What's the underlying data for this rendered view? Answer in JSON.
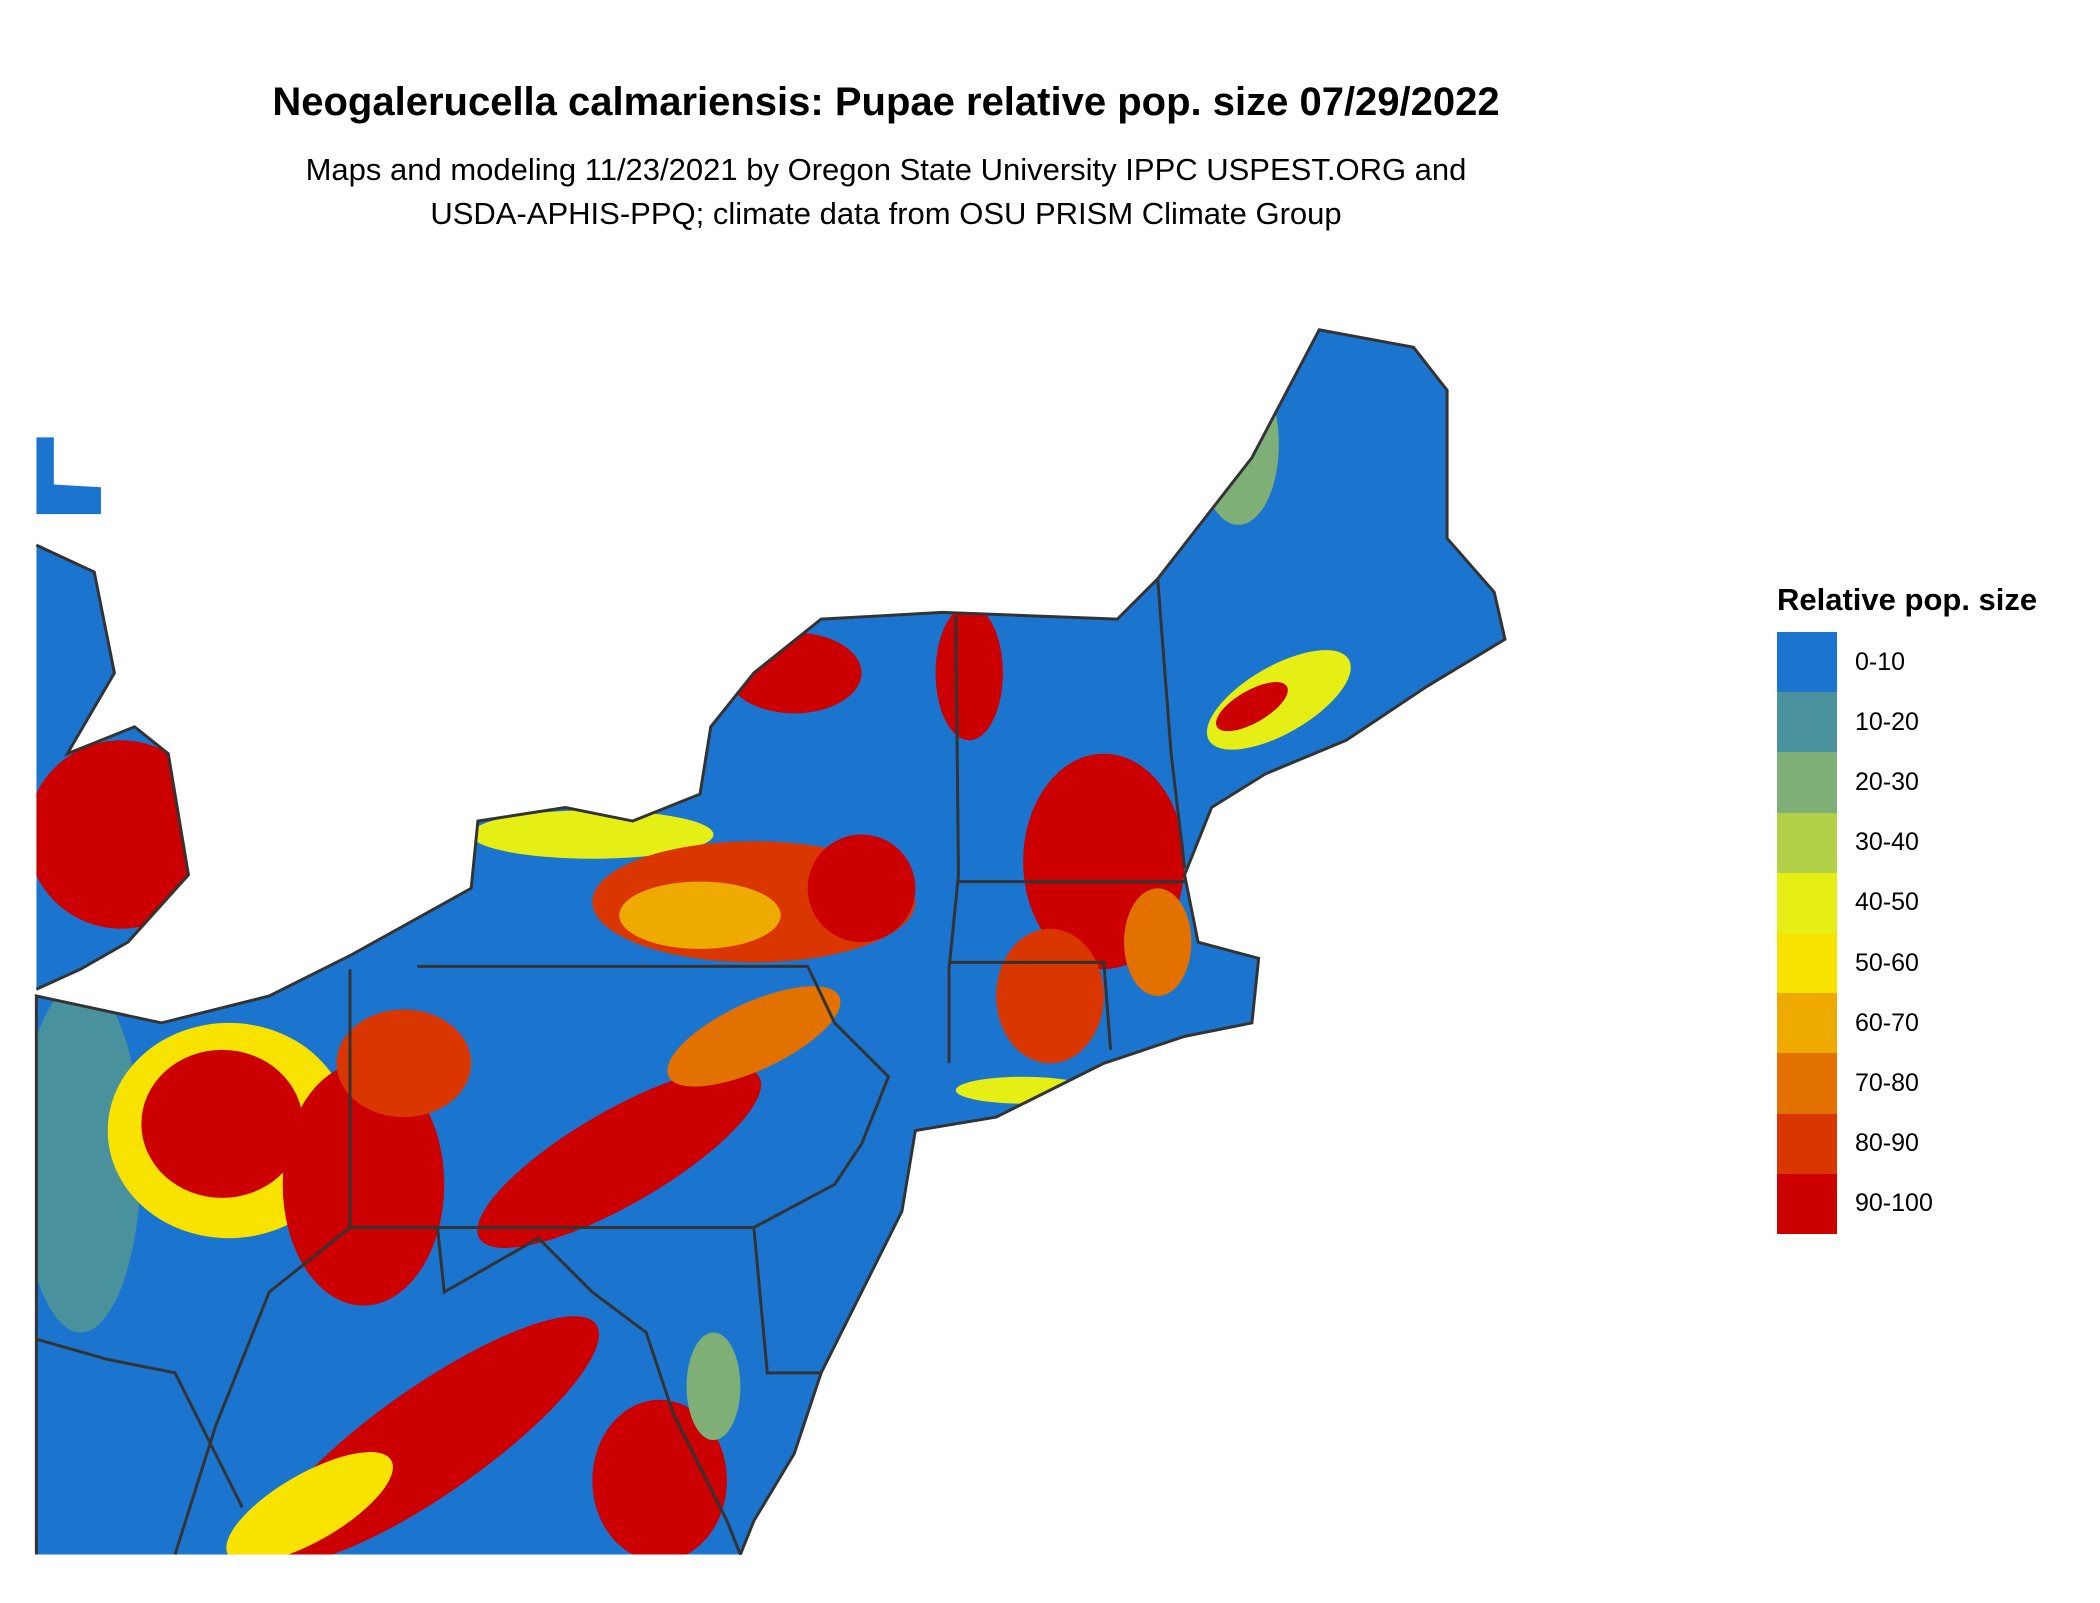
{
  "title": "Neogalerucella calmariensis: Pupae relative pop. size 07/29/2022",
  "subtitle_line1": "Maps and modeling 11/23/2021 by Oregon State University IPPC USPEST.ORG and",
  "subtitle_line2": "USDA-APHIS-PPQ; climate data from OSU PRISM Climate Group",
  "legend": {
    "title": "Relative pop. size",
    "items": [
      {
        "label": "0-10",
        "color": "#1b75cf"
      },
      {
        "label": "10-20",
        "color": "#4a919e"
      },
      {
        "label": "20-30",
        "color": "#7eaf76"
      },
      {
        "label": "30-40",
        "color": "#b2d148"
      },
      {
        "label": "40-50",
        "color": "#e5ef15"
      },
      {
        "label": "50-60",
        "color": "#f8e200"
      },
      {
        "label": "60-70",
        "color": "#eeaa00"
      },
      {
        "label": "70-80",
        "color": "#e27100"
      },
      {
        "label": "80-90",
        "color": "#d93600"
      },
      {
        "label": "90-100",
        "color": "#cc0000"
      }
    ]
  },
  "map": {
    "region": "Northeastern United States",
    "border_color": "#333333"
  }
}
